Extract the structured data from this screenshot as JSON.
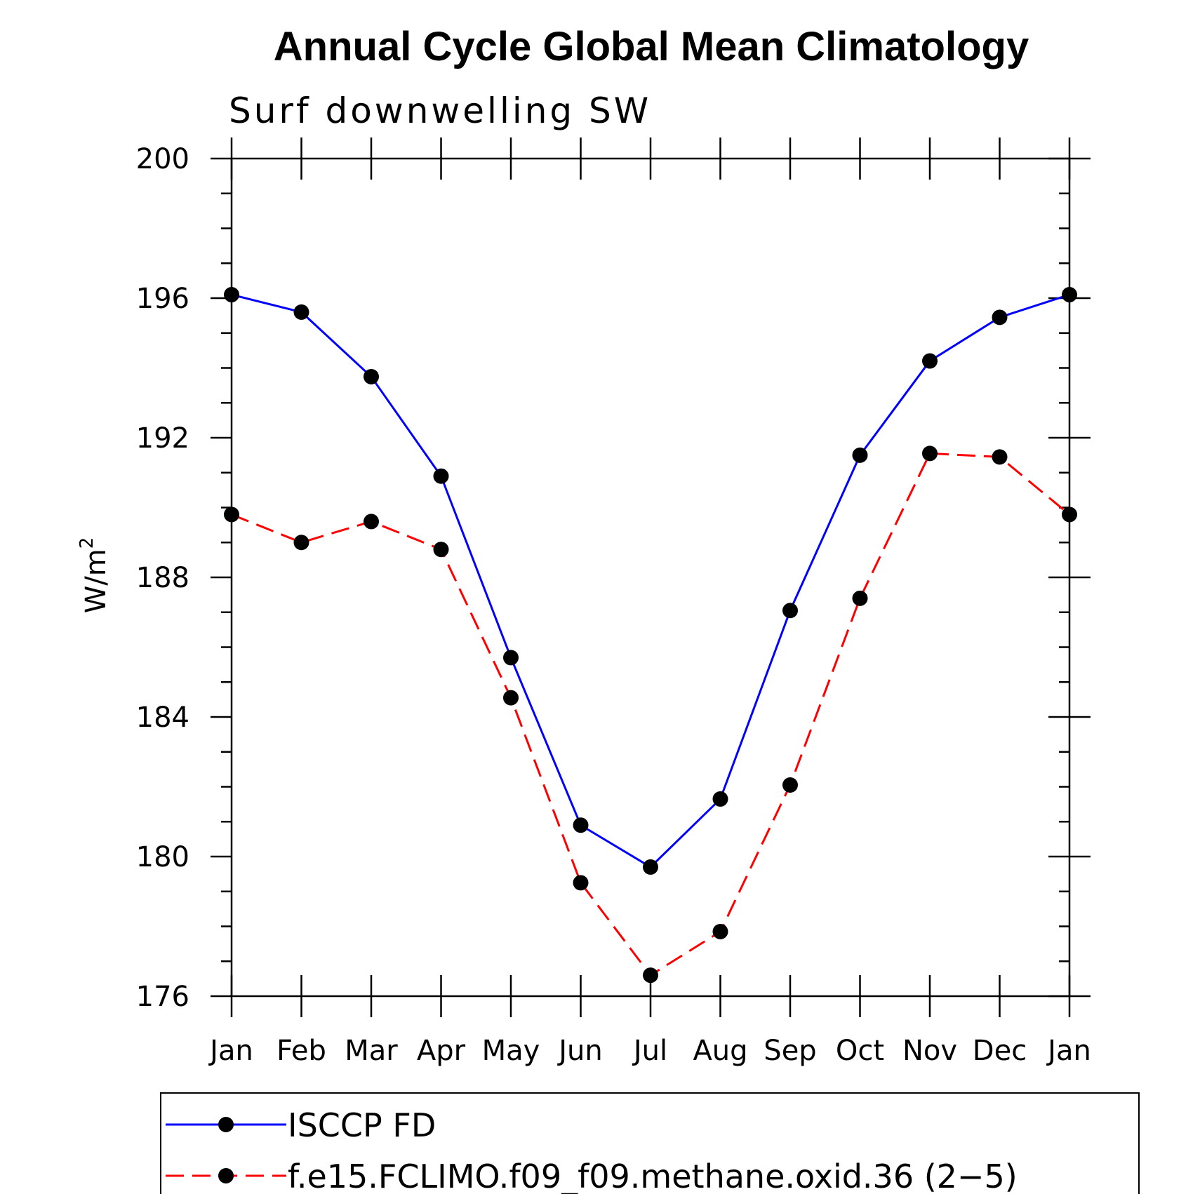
{
  "chart_data": {
    "type": "line",
    "title": "Annual Cycle Global Mean Climatology",
    "subtitle": "Surf downwelling SW",
    "ylabel": "W/m",
    "ylabel_superscript": "2",
    "categories": [
      "Jan",
      "Feb",
      "Mar",
      "Apr",
      "May",
      "Jun",
      "Jul",
      "Aug",
      "Sep",
      "Oct",
      "Nov",
      "Dec",
      "Jan"
    ],
    "ylim": [
      176,
      200
    ],
    "yticks": [
      "176",
      "180",
      "184",
      "188",
      "192",
      "196",
      "200"
    ],
    "series": [
      {
        "name": "ISCCP FD",
        "color": "#0000ff",
        "dash": "solid",
        "values": [
          196.1,
          195.6,
          193.75,
          190.9,
          185.7,
          180.9,
          179.7,
          181.65,
          187.05,
          191.5,
          194.2,
          195.45,
          196.1
        ]
      },
      {
        "name": "f.e15.FCLIMO.f09_f09.methane.oxid.36 (2−5)",
        "color": "#ff0000",
        "dash": "dashed",
        "values": [
          189.8,
          189.0,
          189.6,
          188.8,
          184.55,
          179.25,
          176.6,
          177.85,
          182.05,
          187.4,
          191.55,
          191.45,
          189.8
        ]
      }
    ],
    "marker_color": "#000000",
    "legend_position": "bottom"
  }
}
